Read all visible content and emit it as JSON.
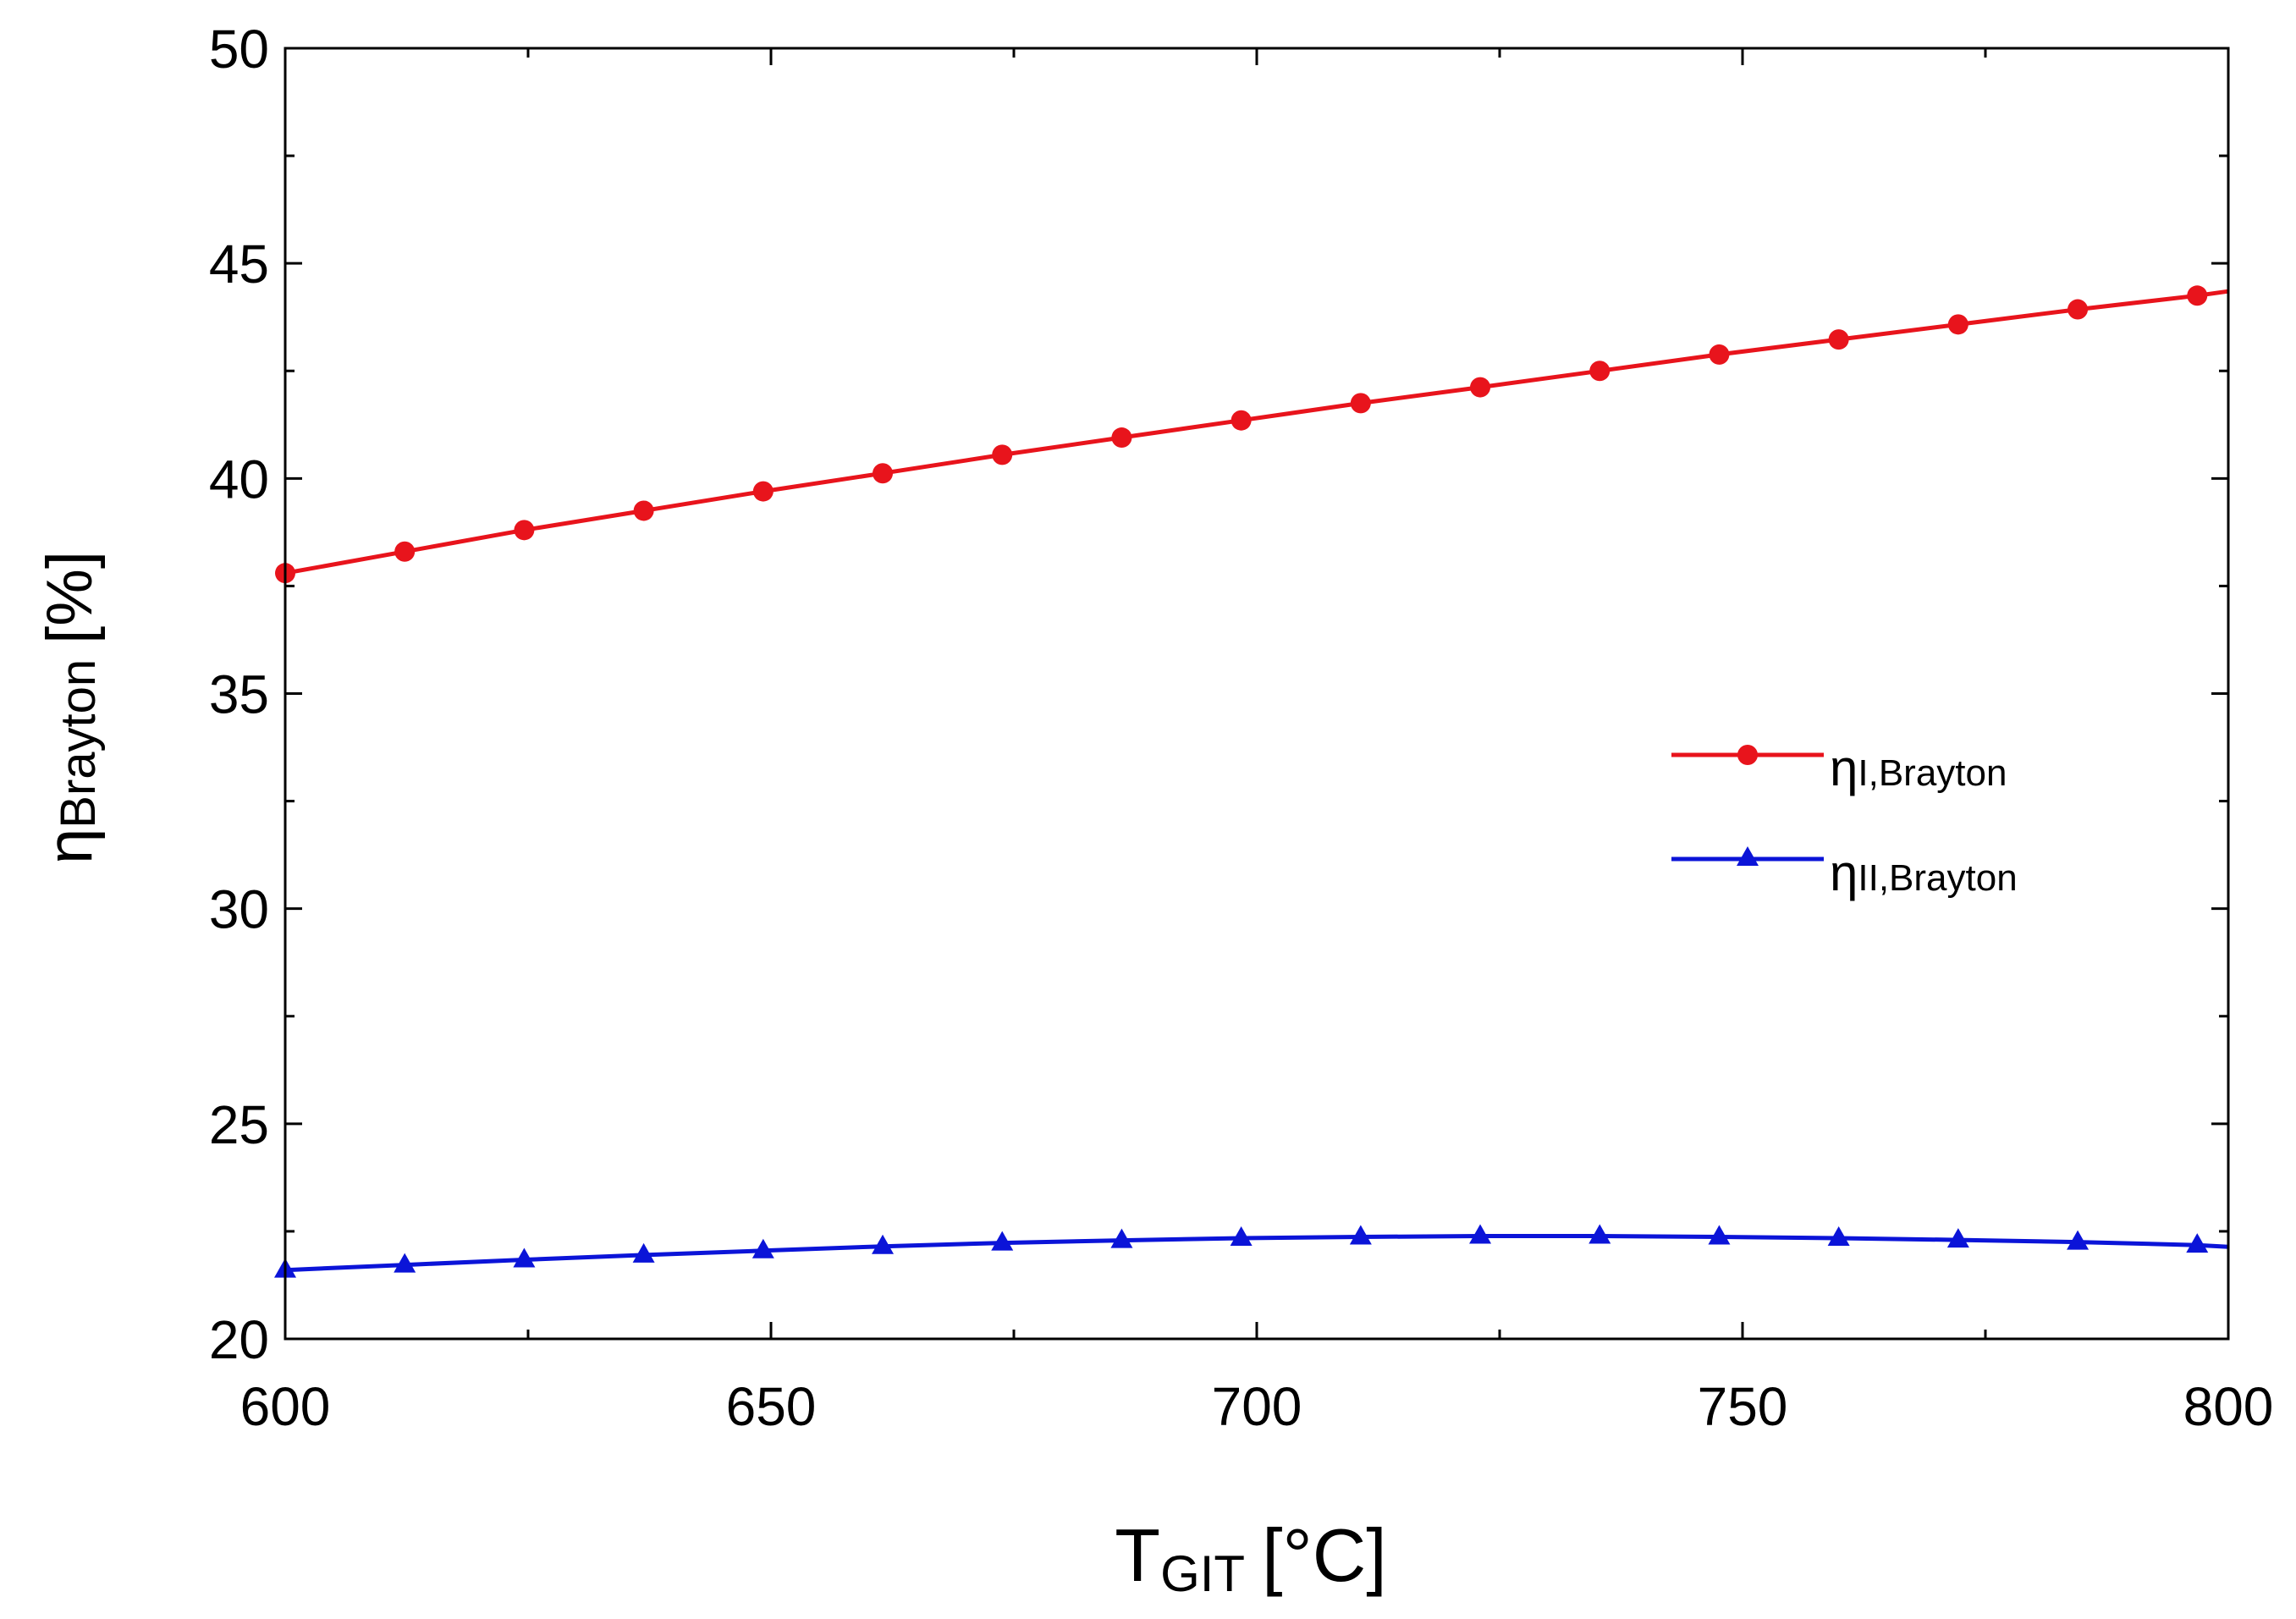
{
  "chart_data": {
    "type": "line",
    "title": "",
    "xlabel": {
      "main": "T",
      "sub": "GIT",
      "unit": "[°C]"
    },
    "ylabel": {
      "main": "η",
      "sub": "Brayton",
      "unit": "[%]"
    },
    "xlim": [
      600,
      800
    ],
    "ylim": [
      20,
      50
    ],
    "x_ticks": [
      600,
      650,
      700,
      750,
      800
    ],
    "y_ticks": [
      20,
      25,
      30,
      35,
      40,
      45,
      50
    ],
    "x": [
      600,
      612.3,
      624.6,
      636.9,
      649.2,
      661.5,
      673.8,
      686.1,
      698.4,
      710.7,
      723.0,
      735.3,
      747.6,
      759.9,
      772.2,
      784.5,
      796.8
    ],
    "series": [
      {
        "name": "ηI,Brayton",
        "name_main": "η",
        "name_sub": "I,Brayton",
        "color": "#e8141c",
        "marker": "circle",
        "values": [
          37.8,
          38.3,
          38.8,
          39.25,
          39.7,
          40.12,
          40.55,
          40.95,
          41.35,
          41.75,
          42.12,
          42.5,
          42.88,
          43.23,
          43.58,
          43.93,
          44.25
        ],
        "end_value": 44.35
      },
      {
        "name": "ηII,Brayton",
        "name_main": "η",
        "name_sub": "II,Brayton",
        "color": "#0b14d8",
        "marker": "triangle",
        "values": [
          21.6,
          21.72,
          21.84,
          21.95,
          22.05,
          22.15,
          22.23,
          22.29,
          22.34,
          22.37,
          22.39,
          22.39,
          22.37,
          22.34,
          22.3,
          22.25,
          22.18
        ],
        "end_value": 22.14
      }
    ],
    "legend_position": "center-right"
  }
}
